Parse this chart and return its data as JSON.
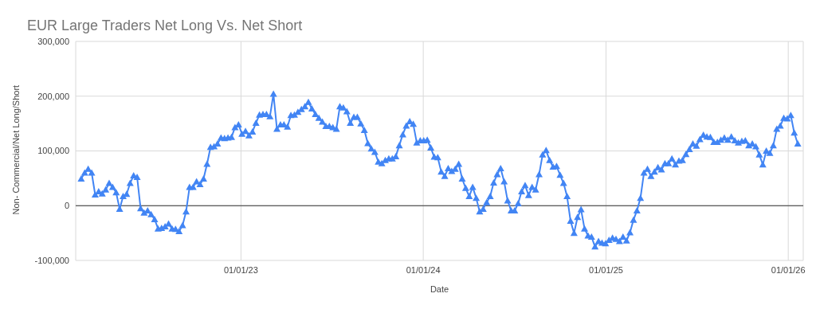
{
  "chart_data": {
    "type": "line",
    "title": "EUR Large Traders Net Long Vs. Net Short",
    "xlabel": "Date",
    "ylabel": "Non- Commercial/Net Long/Short",
    "x": [
      "2022-02-15",
      "2022-02-22",
      "2022-03-01",
      "2022-03-08",
      "2022-03-15",
      "2022-03-22",
      "2022-03-29",
      "2022-04-05",
      "2022-04-12",
      "2022-04-19",
      "2022-04-26",
      "2022-05-03",
      "2022-05-10",
      "2022-05-17",
      "2022-05-24",
      "2022-05-31",
      "2022-06-07",
      "2022-06-14",
      "2022-06-21",
      "2022-06-28",
      "2022-07-05",
      "2022-07-12",
      "2022-07-19",
      "2022-07-26",
      "2022-08-02",
      "2022-08-09",
      "2022-08-16",
      "2022-08-23",
      "2022-08-30",
      "2022-09-06",
      "2022-09-13",
      "2022-09-20",
      "2022-09-27",
      "2022-10-04",
      "2022-10-11",
      "2022-10-18",
      "2022-10-25",
      "2022-11-01",
      "2022-11-08",
      "2022-11-15",
      "2022-11-22",
      "2022-11-29",
      "2022-12-06",
      "2022-12-13",
      "2022-12-20",
      "2022-12-27",
      "2023-01-03",
      "2023-01-10",
      "2023-01-17",
      "2023-01-24",
      "2023-01-31",
      "2023-02-07",
      "2023-02-14",
      "2023-02-21",
      "2023-02-28",
      "2023-03-07",
      "2023-03-14",
      "2023-03-21",
      "2023-03-28",
      "2023-04-04",
      "2023-04-11",
      "2023-04-18",
      "2023-04-25",
      "2023-05-02",
      "2023-05-09",
      "2023-05-16",
      "2023-05-23",
      "2023-05-30",
      "2023-06-06",
      "2023-06-13",
      "2023-06-20",
      "2023-06-27",
      "2023-07-04",
      "2023-07-11",
      "2023-07-18",
      "2023-07-25",
      "2023-08-01",
      "2023-08-08",
      "2023-08-15",
      "2023-08-22",
      "2023-08-29",
      "2023-09-05",
      "2023-09-12",
      "2023-09-19",
      "2023-09-26",
      "2023-10-03",
      "2023-10-10",
      "2023-10-17",
      "2023-10-24",
      "2023-10-31",
      "2023-11-07",
      "2023-11-14",
      "2023-11-21",
      "2023-11-28",
      "2023-12-05",
      "2023-12-12",
      "2023-12-19",
      "2023-12-26",
      "2024-01-02",
      "2024-01-09",
      "2024-01-16",
      "2024-01-23",
      "2024-01-30",
      "2024-02-06",
      "2024-02-13",
      "2024-02-20",
      "2024-02-27",
      "2024-03-05",
      "2024-03-12",
      "2024-03-19",
      "2024-03-26",
      "2024-04-02",
      "2024-04-09",
      "2024-04-16",
      "2024-04-23",
      "2024-04-30",
      "2024-05-07",
      "2024-05-14",
      "2024-05-21",
      "2024-05-28",
      "2024-06-04",
      "2024-06-11",
      "2024-06-18",
      "2024-06-25",
      "2024-07-02",
      "2024-07-09",
      "2024-07-16",
      "2024-07-23",
      "2024-07-30",
      "2024-08-06",
      "2024-08-13",
      "2024-08-20",
      "2024-08-27",
      "2024-09-03",
      "2024-09-10",
      "2024-09-17",
      "2024-09-24",
      "2024-10-01",
      "2024-10-08",
      "2024-10-15",
      "2024-10-22",
      "2024-10-29",
      "2024-11-05",
      "2024-11-12",
      "2024-11-19",
      "2024-11-26",
      "2024-12-03",
      "2024-12-10",
      "2024-12-17",
      "2024-12-24",
      "2024-12-31",
      "2025-01-07",
      "2025-01-14",
      "2025-01-21",
      "2025-01-28",
      "2025-02-04",
      "2025-02-11",
      "2025-02-18",
      "2025-02-25",
      "2025-03-04",
      "2025-03-11",
      "2025-03-18",
      "2025-03-25",
      "2025-04-01",
      "2025-04-08",
      "2025-04-15",
      "2025-04-22",
      "2025-04-29",
      "2025-05-06",
      "2025-05-13",
      "2025-05-20",
      "2025-05-27",
      "2025-06-03",
      "2025-06-10",
      "2025-06-17",
      "2025-06-24",
      "2025-07-01",
      "2025-07-08",
      "2025-07-15",
      "2025-07-22",
      "2025-07-29",
      "2025-08-05",
      "2025-08-12",
      "2025-08-19",
      "2025-08-26",
      "2025-09-02",
      "2025-09-09",
      "2025-09-16",
      "2025-09-23",
      "2025-09-30",
      "2025-10-07",
      "2025-10-14",
      "2025-10-21",
      "2025-10-28",
      "2025-11-04",
      "2025-11-11",
      "2025-11-18",
      "2025-11-25",
      "2025-12-02",
      "2025-12-09",
      "2025-12-16",
      "2025-12-23",
      "2025-12-30",
      "2026-01-06",
      "2026-01-13",
      "2026-01-20"
    ],
    "values": [
      49000,
      60000,
      67000,
      60000,
      20000,
      26000,
      22000,
      29000,
      41000,
      34000,
      24000,
      -6000,
      17000,
      21000,
      41000,
      55000,
      52000,
      -5000,
      -13000,
      -9000,
      -16000,
      -25000,
      -42000,
      -41000,
      -38000,
      -33000,
      -42000,
      -43000,
      -47000,
      -36000,
      -11000,
      34000,
      34000,
      44000,
      39000,
      49000,
      76000,
      107000,
      108000,
      113000,
      124000,
      123000,
      124000,
      125000,
      143000,
      148000,
      131000,
      136000,
      128000,
      135000,
      151000,
      166000,
      167000,
      167000,
      163000,
      204000,
      140000,
      148000,
      148000,
      144000,
      165000,
      166000,
      171000,
      176000,
      181000,
      189000,
      177000,
      167000,
      160000,
      153000,
      145000,
      145000,
      143000,
      140000,
      181000,
      179000,
      172000,
      151000,
      162000,
      162000,
      150000,
      138000,
      114000,
      104000,
      98000,
      80000,
      77000,
      83000,
      86000,
      86000,
      90000,
      110000,
      130000,
      146000,
      154000,
      149000,
      115000,
      119000,
      119000,
      120000,
      106000,
      89000,
      88000,
      62000,
      54000,
      68000,
      63000,
      67000,
      76000,
      49000,
      32000,
      17000,
      34000,
      14000,
      -11000,
      -6000,
      6000,
      17000,
      42000,
      57000,
      68000,
      44000,
      9000,
      -9000,
      -9000,
      4000,
      26000,
      37000,
      19000,
      34000,
      29000,
      57000,
      93000,
      101000,
      83000,
      71000,
      72000,
      56000,
      41000,
      17000,
      -28000,
      -50000,
      -21000,
      -7000,
      -42000,
      -55000,
      -57000,
      -75000,
      -65000,
      -68000,
      -69000,
      -63000,
      -59000,
      -61000,
      -65000,
      -57000,
      -64000,
      -49000,
      -26000,
      -9000,
      14000,
      60000,
      67000,
      54000,
      62000,
      70000,
      66000,
      77000,
      77000,
      86000,
      75000,
      82000,
      83000,
      94000,
      103000,
      113000,
      109000,
      121000,
      129000,
      126000,
      125000,
      116000,
      116000,
      120000,
      124000,
      120000,
      126000,
      119000,
      115000,
      118000,
      119000,
      110000,
      113000,
      108000,
      93000,
      75000,
      100000,
      96000,
      110000,
      140000,
      146000,
      160000,
      159000,
      165000,
      133000,
      113000
    ],
    "color": "#4285f4",
    "marker": "triangle",
    "line_style": "solid",
    "grid": true,
    "xlim": [
      "2022-02-04",
      "2026-01-31"
    ],
    "xticks": [
      {
        "value": "2023-01-01",
        "label": "01/01/23"
      },
      {
        "value": "2024-01-01",
        "label": "01/01/24"
      },
      {
        "value": "2025-01-01",
        "label": "01/01/25"
      },
      {
        "value": "2026-01-01",
        "label": "01/01/26"
      }
    ],
    "ylim": [
      -100000,
      300000
    ],
    "yticks": [
      {
        "value": -100000,
        "label": "-100,000"
      },
      {
        "value": 0,
        "label": "0"
      },
      {
        "value": 100000,
        "label": "100,000"
      },
      {
        "value": 200000,
        "label": "200,000"
      },
      {
        "value": 300000,
        "label": "300,000"
      }
    ],
    "ref_lines": [
      {
        "axis": "y",
        "value": 0,
        "color": "#333333"
      }
    ]
  }
}
